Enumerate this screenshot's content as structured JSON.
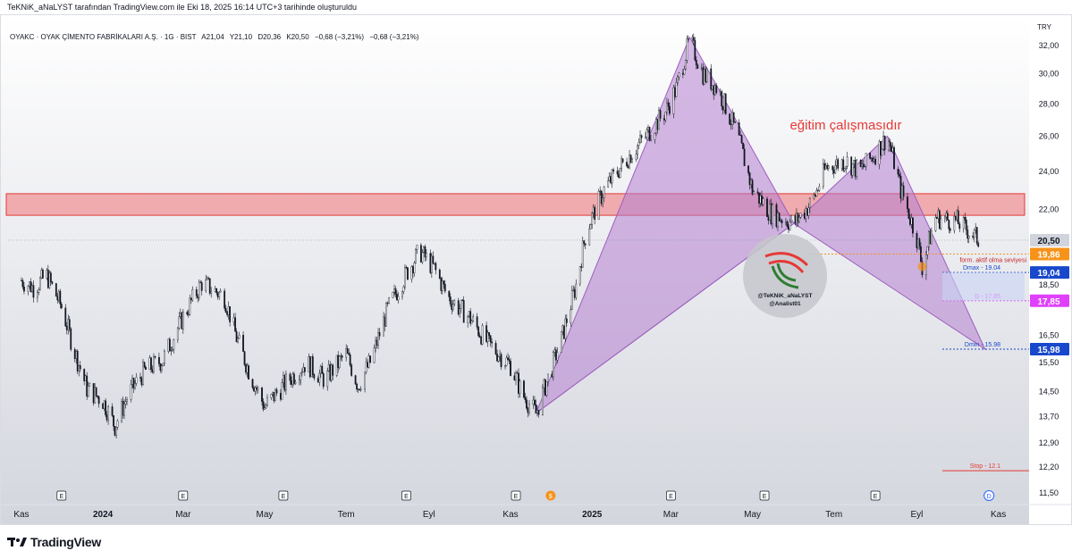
{
  "header": {
    "attribution": "TeKNiK_aNaLYST tarafından TradingView.com ile Eki 18, 2025 16:14 UTC+3 tarihinde oluşturuldu"
  },
  "symbol_line": {
    "name": "OYAKC · OYAK ÇİMENTO FABRİKALARI A.Ş. · 1G · BIST",
    "open": "A21,04",
    "high": "Y21,10",
    "low": "D20,36",
    "close": "K20,50",
    "change": "−0,68 (−3,21%)",
    "change2": "−0,68 (−3,21%)"
  },
  "currency": "TRY",
  "footer": {
    "brand": "TradingView"
  },
  "colors": {
    "up": "#131722",
    "pattern_fill": "#b57fcf",
    "zone_fill": "#f0868b",
    "zone_border": "#e53935",
    "title_red": "#e53935",
    "blue_tag": "#1848cc",
    "magenta_tag": "#e040fb",
    "orange_tag": "#f7931a",
    "grey_tag": "#d1d4dc"
  },
  "chart_data": {
    "type": "candlestick",
    "title": "eğitim çalışmasıdır",
    "y_scale": "log",
    "ylim": [
      11.2,
      33.6
    ],
    "y_ticks": [
      "32,00",
      "30,00",
      "28,00",
      "26,00",
      "24,00",
      "22,00",
      "20,50",
      "18,50",
      "16,50",
      "15,50",
      "14,50",
      "13,70",
      "12,90",
      "12,20",
      "11,50"
    ],
    "x_ticks": [
      "Kas",
      "2024",
      "Mar",
      "May",
      "Tem",
      "Eyl",
      "Kas",
      "2025",
      "Mar",
      "May",
      "Tem",
      "Eyl",
      "Kas"
    ],
    "x_tick_bold": [
      "2024",
      "2025"
    ],
    "price_path": [
      [
        "2023-11-01",
        18.7
      ],
      [
        "2023-11-10",
        18.4
      ],
      [
        "2023-11-20",
        18.9
      ],
      [
        "2023-12-01",
        17.6
      ],
      [
        "2023-12-10",
        16.0
      ],
      [
        "2023-12-20",
        14.6
      ],
      [
        "2024-01-01",
        14.2
      ],
      [
        "2024-01-10",
        13.4
      ],
      [
        "2024-01-20",
        14.4
      ],
      [
        "2024-02-01",
        15.2
      ],
      [
        "2024-02-15",
        15.6
      ],
      [
        "2024-03-01",
        17.2
      ],
      [
        "2024-03-15",
        18.6
      ],
      [
        "2024-04-01",
        18.0
      ],
      [
        "2024-04-10",
        16.4
      ],
      [
        "2024-04-20",
        15.1
      ],
      [
        "2024-05-01",
        14.0
      ],
      [
        "2024-05-15",
        14.7
      ],
      [
        "2024-06-01",
        15.5
      ],
      [
        "2024-06-15",
        14.9
      ],
      [
        "2024-07-01",
        15.8
      ],
      [
        "2024-07-10",
        14.7
      ],
      [
        "2024-07-20",
        15.6
      ],
      [
        "2024-08-01",
        17.5
      ],
      [
        "2024-08-15",
        19.0
      ],
      [
        "2024-08-25",
        20.0
      ],
      [
        "2024-09-05",
        19.2
      ],
      [
        "2024-09-15",
        18.0
      ],
      [
        "2024-10-01",
        17.2
      ],
      [
        "2024-10-15",
        16.2
      ],
      [
        "2024-11-01",
        15.4
      ],
      [
        "2024-11-10",
        14.4
      ],
      [
        "2024-11-20",
        13.8
      ],
      [
        "2024-12-01",
        15.2
      ],
      [
        "2024-12-10",
        16.5
      ],
      [
        "2024-12-20",
        18.5
      ],
      [
        "2024-12-28",
        21.0
      ],
      [
        "2025-01-10",
        23.0
      ],
      [
        "2025-01-25",
        24.5
      ],
      [
        "2025-02-10",
        26.0
      ],
      [
        "2025-02-25",
        27.5
      ],
      [
        "2025-03-05",
        29.0
      ],
      [
        "2025-03-15",
        32.4
      ],
      [
        "2025-03-25",
        30.0
      ],
      [
        "2025-04-05",
        29.0
      ],
      [
        "2025-04-20",
        26.0
      ],
      [
        "2025-05-01",
        23.0
      ],
      [
        "2025-05-15",
        21.8
      ],
      [
        "2025-06-01",
        21.3
      ],
      [
        "2025-06-15",
        22.4
      ],
      [
        "2025-06-25",
        24.2
      ],
      [
        "2025-07-10",
        24.6
      ],
      [
        "2025-07-20",
        24.0
      ],
      [
        "2025-08-01",
        25.0
      ],
      [
        "2025-08-10",
        26.0
      ],
      [
        "2025-08-20",
        23.0
      ],
      [
        "2025-09-01",
        20.6
      ],
      [
        "2025-09-05",
        19.3
      ],
      [
        "2025-09-15",
        21.6
      ],
      [
        "2025-10-01",
        21.4
      ],
      [
        "2025-10-18",
        20.5
      ]
    ],
    "resistance_zone": {
      "low": 21.7,
      "high": 22.8
    },
    "harmonic_pattern": {
      "points": [
        {
          "date": "2024-11-20",
          "price": 13.8
        },
        {
          "date": "2025-03-15",
          "price": 32.6
        },
        {
          "date": "2025-06-01",
          "price": 21.3
        },
        {
          "date": "2025-08-10",
          "price": 26.0
        },
        {
          "date": "2025-10-22",
          "price": 15.98
        }
      ]
    },
    "levels": [
      {
        "label": "form. aktif olma seviyesi",
        "price": 19.86,
        "tag": "19,86",
        "color": "orange"
      },
      {
        "label": "Dmax - 19.04",
        "price": 19.04,
        "tag": "19,04",
        "color": "blue"
      },
      {
        "label": "D - 17.85",
        "price": 17.85,
        "tag": "17,85",
        "color": "magenta"
      },
      {
        "label": "Dmin - 15.98",
        "price": 15.98,
        "tag": "15,98",
        "color": "blue"
      },
      {
        "label": "Stop - 12.1",
        "price": 12.1,
        "tag": "",
        "color": "red"
      }
    ],
    "last_price": {
      "price": 20.5,
      "tag": "20,50"
    },
    "event_markers": [
      "E",
      "E",
      "E",
      "E",
      "E",
      "$",
      "E",
      "E",
      "E",
      "D"
    ],
    "watermark": {
      "line1": "@TeKNiK_aNaLYST",
      "line2": "@Analist01"
    }
  }
}
